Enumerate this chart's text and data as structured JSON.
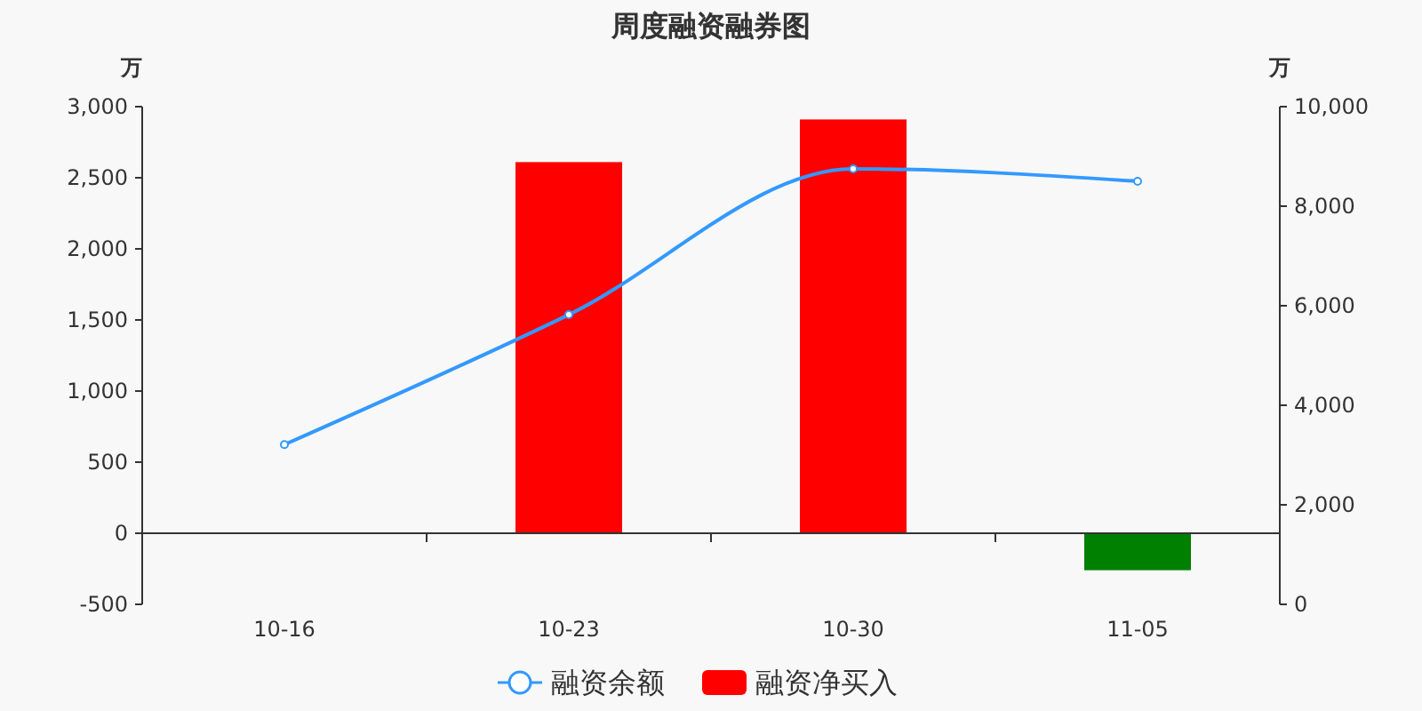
{
  "chart_data": {
    "type": "bar",
    "title": "周度融资融券图",
    "ylabel": "万",
    "y2label": "万",
    "categories": [
      "10-16",
      "10-23",
      "10-30",
      "11-05"
    ],
    "ylim": [
      -500,
      3000
    ],
    "yticks": [
      {
        "value": -500,
        "label": "-500"
      },
      {
        "value": 0,
        "label": "0"
      },
      {
        "value": 500,
        "label": "500"
      },
      {
        "value": 1000,
        "label": "1,000"
      },
      {
        "value": 1500,
        "label": "1,500"
      },
      {
        "value": 2000,
        "label": "2,000"
      },
      {
        "value": 2500,
        "label": "2,500"
      },
      {
        "value": 3000,
        "label": "3,000"
      }
    ],
    "y2lim": [
      0,
      10000
    ],
    "y2ticks": [
      {
        "value": 0,
        "label": "0"
      },
      {
        "value": 2000,
        "label": "2,000"
      },
      {
        "value": 4000,
        "label": "4,000"
      },
      {
        "value": 6000,
        "label": "6,000"
      },
      {
        "value": 8000,
        "label": "8,000"
      },
      {
        "value": 10000,
        "label": "10,000"
      }
    ],
    "series": [
      {
        "name": "融资余额",
        "type": "line",
        "axis": "y2",
        "color": "#3399ff",
        "marker": "circle",
        "values": [
          3210,
          5820,
          8750,
          8500
        ]
      },
      {
        "name": "融资净买入",
        "color": "#ff0000",
        "colors": [
          null,
          "#ff0000",
          "#ff0000",
          "#008000"
        ],
        "values": [
          null,
          2610,
          2910,
          -260
        ]
      }
    ],
    "legend": "bottom"
  }
}
